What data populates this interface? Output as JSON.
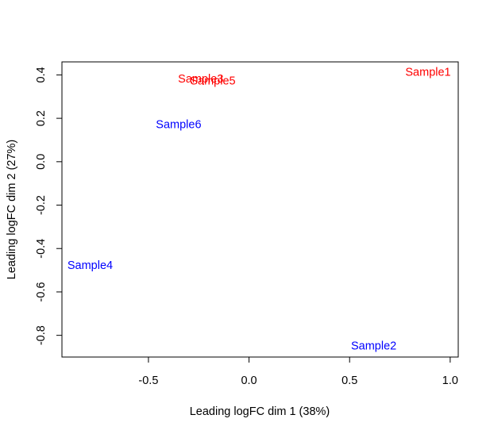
{
  "chart_data": {
    "type": "scatter",
    "xlabel": "Leading logFC dim 1 (38%)",
    "ylabel": "Leading logFC dim 2 (27%)",
    "xlim": [
      -0.93,
      1.04
    ],
    "ylim": [
      -0.9,
      0.46
    ],
    "x_ticks": [
      {
        "value": -0.5,
        "label": "-0.5"
      },
      {
        "value": 0.0,
        "label": "0.0"
      },
      {
        "value": 0.5,
        "label": "0.5"
      },
      {
        "value": 1.0,
        "label": "1.0"
      }
    ],
    "y_ticks": [
      {
        "value": -0.8,
        "label": "-0.8"
      },
      {
        "value": -0.6,
        "label": "-0.6"
      },
      {
        "value": -0.4,
        "label": "-0.4"
      },
      {
        "value": -0.2,
        "label": "-0.2"
      },
      {
        "value": 0.0,
        "label": "0.0"
      },
      {
        "value": 0.2,
        "label": "0.2"
      },
      {
        "value": 0.4,
        "label": "0.4"
      }
    ],
    "grid": false,
    "points": [
      {
        "label": "Sample1",
        "x": 0.89,
        "y": 0.41,
        "color": "#ff0000"
      },
      {
        "label": "Sample3",
        "x": -0.24,
        "y": 0.38,
        "color": "#ff0000"
      },
      {
        "label": "Sample5",
        "x": -0.18,
        "y": 0.37,
        "color": "#ff0000"
      },
      {
        "label": "Sample6",
        "x": -0.35,
        "y": 0.17,
        "color": "#0000ff"
      },
      {
        "label": "Sample4",
        "x": -0.79,
        "y": -0.48,
        "color": "#0000ff"
      },
      {
        "label": "Sample2",
        "x": 0.62,
        "y": -0.85,
        "color": "#0000ff"
      }
    ]
  }
}
